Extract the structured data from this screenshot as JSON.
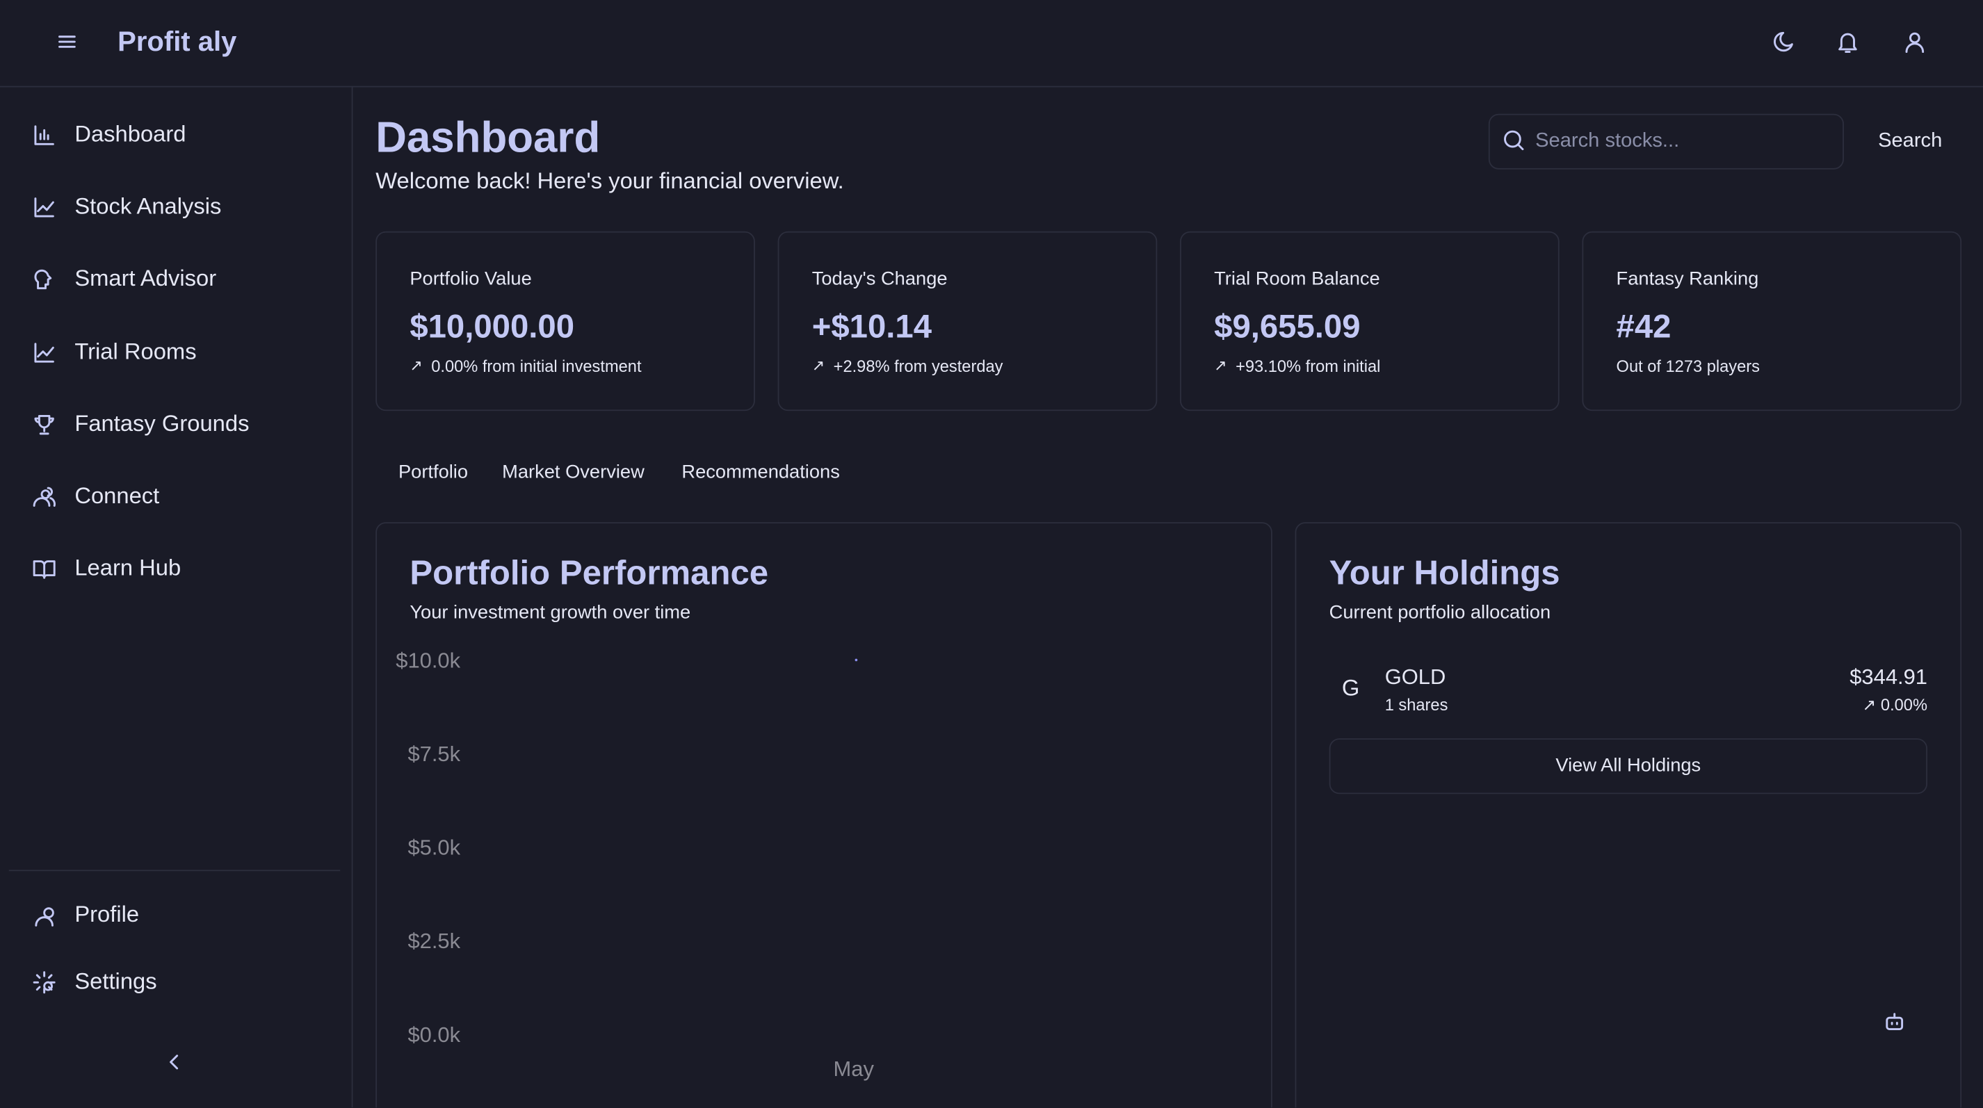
{
  "header": {
    "brand": "Profit aly"
  },
  "sidebar": {
    "nav": [
      "Dashboard",
      "Stock Analysis",
      "Smart Advisor",
      "Trial Rooms",
      "Fantasy Grounds",
      "Connect",
      "Learn Hub"
    ],
    "bottom": [
      "Profile",
      "Settings"
    ]
  },
  "page": {
    "title": "Dashboard",
    "subtitle": "Welcome back! Here's your financial overview.",
    "search_placeholder": "Search stocks...",
    "search_button": "Search"
  },
  "stats": [
    {
      "label": "Portfolio Value",
      "value": "$10,000.00",
      "change": "0.00% from initial investment"
    },
    {
      "label": "Today's Change",
      "value": "+$10.14",
      "change": "+2.98% from yesterday"
    },
    {
      "label": "Trial Room Balance",
      "value": "$9,655.09",
      "change": "+93.10% from initial"
    },
    {
      "label": "Fantasy Ranking",
      "value": "#42",
      "change": "Out of 1273 players"
    }
  ],
  "tabs": [
    "Portfolio",
    "Market Overview",
    "Recommendations"
  ],
  "chart_data": {
    "type": "line",
    "title": "Portfolio Performance",
    "subtitle": "Your investment growth over time",
    "categories": [
      "May"
    ],
    "series": [
      {
        "values": [
          10000
        ],
        "color": "#8b8ff0"
      }
    ],
    "ylim": [
      0,
      10000
    ],
    "yticks": [
      {
        "value": 0,
        "label": "$0.0k"
      },
      {
        "value": 2500,
        "label": "$2.5k"
      },
      {
        "value": 5000,
        "label": "$5.0k"
      },
      {
        "value": 7500,
        "label": "$7.5k"
      },
      {
        "value": 10000,
        "label": "$10.0k"
      }
    ]
  },
  "holdings": {
    "title": "Your Holdings",
    "subtitle": "Current portfolio allocation",
    "items": [
      {
        "initial": "G",
        "symbol": "GOLD",
        "shares": "1 shares",
        "value": "$344.91",
        "change": "0.00%"
      }
    ],
    "button": "View All Holdings"
  }
}
